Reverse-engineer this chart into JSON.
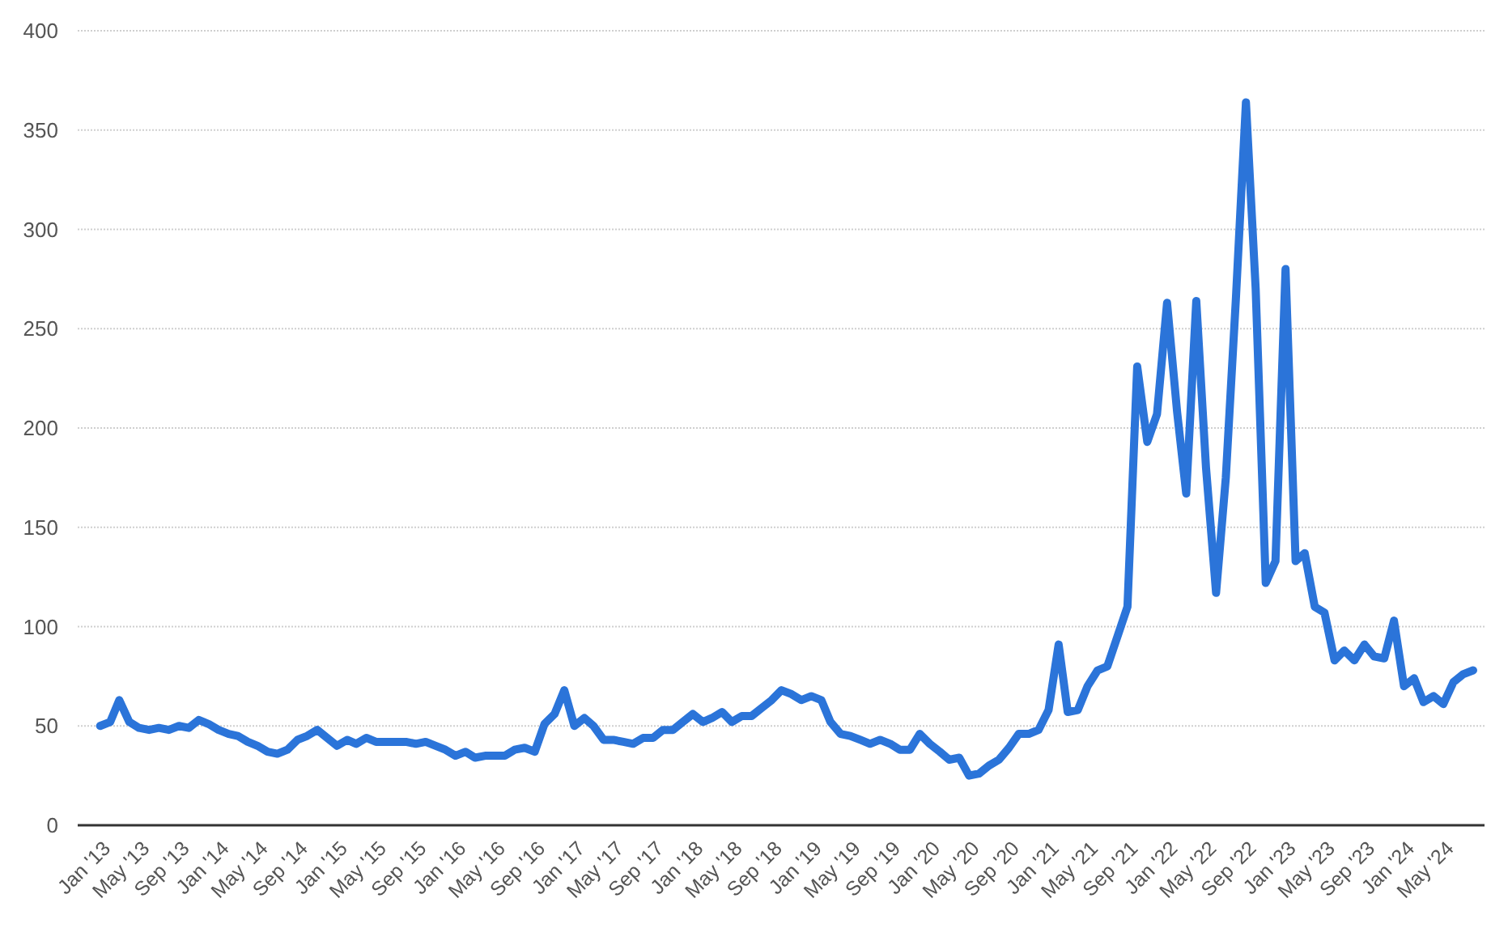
{
  "chart_data": {
    "type": "line",
    "grid": "y",
    "ylim": [
      0,
      400
    ],
    "yticks": [
      0,
      50,
      100,
      150,
      200,
      250,
      300,
      350,
      400
    ],
    "xlim": [
      "2012-10-24",
      "2024-09-05"
    ],
    "xticks": [
      {
        "value": "2013-01",
        "label": "Jan '13"
      },
      {
        "value": "2013-05",
        "label": "May '13"
      },
      {
        "value": "2013-09",
        "label": "Sep '13"
      },
      {
        "value": "2014-01",
        "label": "Jan '14"
      },
      {
        "value": "2014-05",
        "label": "May '14"
      },
      {
        "value": "2014-09",
        "label": "Sep '14"
      },
      {
        "value": "2015-01",
        "label": "Jan '15"
      },
      {
        "value": "2015-05",
        "label": "May '15"
      },
      {
        "value": "2015-09",
        "label": "Sep '15"
      },
      {
        "value": "2016-01",
        "label": "Jan '16"
      },
      {
        "value": "2016-05",
        "label": "May '16"
      },
      {
        "value": "2016-09",
        "label": "Sep '16"
      },
      {
        "value": "2017-01",
        "label": "Jan '17"
      },
      {
        "value": "2017-05",
        "label": "May '17"
      },
      {
        "value": "2017-09",
        "label": "Sep '17"
      },
      {
        "value": "2018-01",
        "label": "Jan '18"
      },
      {
        "value": "2018-05",
        "label": "May '18"
      },
      {
        "value": "2018-09",
        "label": "Sep '18"
      },
      {
        "value": "2019-01",
        "label": "Jan '19"
      },
      {
        "value": "2019-05",
        "label": "May '19"
      },
      {
        "value": "2019-09",
        "label": "Sep '19"
      },
      {
        "value": "2020-01",
        "label": "Jan '20"
      },
      {
        "value": "2020-05",
        "label": "May '20"
      },
      {
        "value": "2020-09",
        "label": "Sep '20"
      },
      {
        "value": "2021-01",
        "label": "Jan '21"
      },
      {
        "value": "2021-05",
        "label": "May '21"
      },
      {
        "value": "2021-09",
        "label": "Sep '21"
      },
      {
        "value": "2022-01",
        "label": "Jan '22"
      },
      {
        "value": "2022-05",
        "label": "May '22"
      },
      {
        "value": "2022-09",
        "label": "Sep '22"
      },
      {
        "value": "2023-01",
        "label": "Jan '23"
      },
      {
        "value": "2023-05",
        "label": "May '23"
      },
      {
        "value": "2023-09",
        "label": "Sep '23"
      },
      {
        "value": "2024-01",
        "label": "Jan '24"
      },
      {
        "value": "2024-05",
        "label": "May '24"
      }
    ],
    "x": [
      "2013-01",
      "2013-02",
      "2013-03",
      "2013-04",
      "2013-05",
      "2013-06",
      "2013-07",
      "2013-08",
      "2013-09",
      "2013-10",
      "2013-11",
      "2013-12",
      "2014-01",
      "2014-02",
      "2014-03",
      "2014-04",
      "2014-05",
      "2014-06",
      "2014-07",
      "2014-08",
      "2014-09",
      "2014-10",
      "2014-11",
      "2014-12",
      "2015-01",
      "2015-02",
      "2015-03",
      "2015-04",
      "2015-05",
      "2015-06",
      "2015-07",
      "2015-08",
      "2015-09",
      "2015-10",
      "2015-11",
      "2015-12",
      "2016-01",
      "2016-02",
      "2016-03",
      "2016-04",
      "2016-05",
      "2016-06",
      "2016-07",
      "2016-08",
      "2016-09",
      "2016-10",
      "2016-11",
      "2016-12",
      "2017-01",
      "2017-02",
      "2017-03",
      "2017-04",
      "2017-05",
      "2017-06",
      "2017-07",
      "2017-08",
      "2017-09",
      "2017-10",
      "2017-11",
      "2017-12",
      "2018-01",
      "2018-02",
      "2018-03",
      "2018-04",
      "2018-05",
      "2018-06",
      "2018-07",
      "2018-08",
      "2018-09",
      "2018-10",
      "2018-11",
      "2018-12",
      "2019-01",
      "2019-02",
      "2019-03",
      "2019-04",
      "2019-05",
      "2019-06",
      "2019-07",
      "2019-08",
      "2019-09",
      "2019-10",
      "2019-11",
      "2019-12",
      "2020-01",
      "2020-02",
      "2020-03",
      "2020-04",
      "2020-05",
      "2020-06",
      "2020-07",
      "2020-08",
      "2020-09",
      "2020-10",
      "2020-11",
      "2020-12",
      "2021-01",
      "2021-02",
      "2021-03",
      "2021-04",
      "2021-05",
      "2021-06",
      "2021-07",
      "2021-08",
      "2021-09",
      "2021-10",
      "2021-11",
      "2021-12",
      "2022-01",
      "2022-02",
      "2022-03",
      "2022-04",
      "2022-05",
      "2022-06",
      "2022-07",
      "2022-08",
      "2022-09",
      "2022-10",
      "2022-11",
      "2022-12",
      "2023-01",
      "2023-02",
      "2023-03",
      "2023-04",
      "2023-05",
      "2023-06",
      "2023-07",
      "2023-08",
      "2023-09",
      "2023-10",
      "2023-11",
      "2023-12",
      "2024-01",
      "2024-02",
      "2024-03",
      "2024-04",
      "2024-05",
      "2024-06",
      "2024-07",
      "2024-08"
    ],
    "series": [
      {
        "color": "#2b74d9",
        "values": [
          50,
          52,
          63,
          52,
          49,
          48,
          49,
          48,
          50,
          49,
          53,
          51,
          48,
          46,
          45,
          42,
          40,
          37,
          36,
          38,
          43,
          45,
          48,
          44,
          40,
          43,
          41,
          44,
          42,
          42,
          42,
          42,
          41,
          42,
          40,
          38,
          35,
          37,
          34,
          35,
          35,
          35,
          38,
          39,
          37,
          51,
          56,
          68,
          50,
          54,
          50,
          43,
          43,
          42,
          41,
          44,
          44,
          48,
          48,
          52,
          56,
          52,
          54,
          57,
          52,
          55,
          55,
          59,
          63,
          68,
          66,
          63,
          65,
          63,
          52,
          46,
          45,
          43,
          41,
          43,
          41,
          38,
          38,
          46,
          41,
          37,
          33,
          34,
          25,
          26,
          30,
          33,
          39,
          46,
          46,
          48,
          58,
          91,
          57,
          58,
          70,
          78,
          80,
          95,
          110,
          231,
          193,
          207,
          263,
          208,
          167,
          264,
          180,
          117,
          175,
          265,
          364,
          270,
          122,
          133,
          280,
          133,
          137,
          110,
          107,
          83,
          88,
          83,
          91,
          85,
          84,
          103,
          70,
          74,
          62,
          65,
          61,
          72,
          76,
          78
        ]
      }
    ]
  }
}
